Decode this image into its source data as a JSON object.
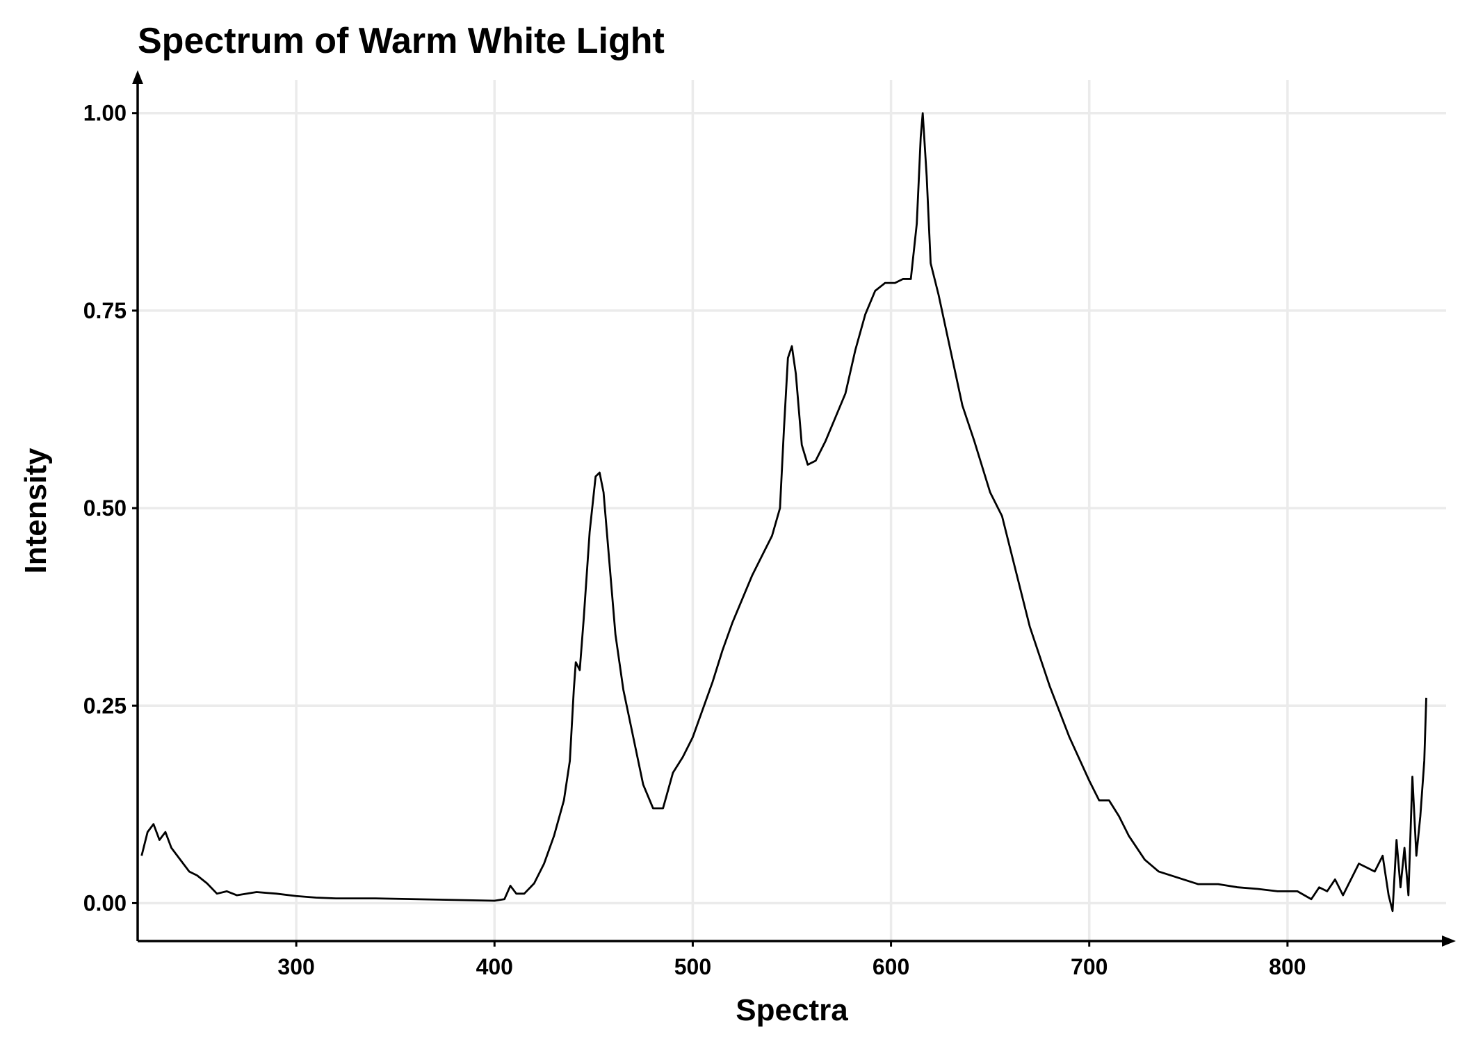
{
  "chart_data": {
    "type": "line",
    "title": "Spectrum of Warm White Light",
    "x_label": "Spectra",
    "y_label": "Intensity",
    "color": "#000000",
    "grid": true,
    "xlim": [
      220,
      880
    ],
    "ylim": [
      -0.048,
      1.042
    ],
    "xticks": [
      300,
      400,
      500,
      600,
      700,
      800
    ],
    "yticks": [
      {
        "value": 0,
        "label": "0.00"
      },
      {
        "value": 0.25,
        "label": "0.25"
      },
      {
        "value": 0.5,
        "label": "0.50"
      },
      {
        "value": 0.75,
        "label": "0.75"
      },
      {
        "value": 1,
        "label": "1.00"
      }
    ],
    "x": [
      222,
      225,
      228,
      231,
      234,
      237,
      240,
      243,
      246,
      250,
      255,
      260,
      265,
      270,
      280,
      290,
      300,
      310,
      320,
      340,
      360,
      380,
      400,
      405,
      408,
      411,
      415,
      420,
      425,
      430,
      435,
      438,
      440,
      441,
      443,
      445,
      448,
      451,
      453,
      455,
      458,
      461,
      465,
      470,
      475,
      480,
      485,
      490,
      495,
      500,
      505,
      510,
      515,
      520,
      525,
      530,
      535,
      540,
      544,
      546,
      548,
      550,
      552,
      555,
      558,
      562,
      567,
      572,
      577,
      582,
      587,
      592,
      597,
      602,
      606,
      610,
      613,
      615,
      616,
      618,
      620,
      624,
      630,
      636,
      642,
      650,
      656,
      662,
      670,
      680,
      690,
      700,
      705,
      710,
      715,
      720,
      728,
      735,
      745,
      755,
      765,
      775,
      785,
      795,
      805,
      812,
      816,
      820,
      824,
      828,
      832,
      836,
      840,
      844,
      848,
      851,
      853,
      855,
      857,
      859,
      861,
      863,
      865,
      867,
      869,
      870
    ],
    "values": [
      0.06,
      0.09,
      0.1,
      0.08,
      0.09,
      0.07,
      0.06,
      0.05,
      0.04,
      0.035,
      0.025,
      0.012,
      0.015,
      0.01,
      0.014,
      0.012,
      0.009,
      0.007,
      0.006,
      0.006,
      0.005,
      0.004,
      0.003,
      0.005,
      0.022,
      0.012,
      0.012,
      0.025,
      0.05,
      0.085,
      0.13,
      0.18,
      0.27,
      0.305,
      0.295,
      0.36,
      0.47,
      0.54,
      0.545,
      0.52,
      0.43,
      0.34,
      0.27,
      0.21,
      0.15,
      0.12,
      0.12,
      0.165,
      0.185,
      0.21,
      0.245,
      0.28,
      0.32,
      0.355,
      0.385,
      0.415,
      0.44,
      0.465,
      0.5,
      0.6,
      0.69,
      0.705,
      0.67,
      0.58,
      0.555,
      0.56,
      0.585,
      0.615,
      0.645,
      0.7,
      0.745,
      0.775,
      0.785,
      0.785,
      0.79,
      0.79,
      0.86,
      0.97,
      1.0,
      0.92,
      0.81,
      0.77,
      0.7,
      0.63,
      0.585,
      0.52,
      0.49,
      0.43,
      0.35,
      0.275,
      0.21,
      0.155,
      0.13,
      0.13,
      0.11,
      0.085,
      0.055,
      0.04,
      0.032,
      0.024,
      0.024,
      0.02,
      0.018,
      0.015,
      0.015,
      0.005,
      0.02,
      0.015,
      0.03,
      0.01,
      0.03,
      0.05,
      0.045,
      0.04,
      0.06,
      0.01,
      -0.01,
      0.08,
      0.02,
      0.07,
      0.01,
      0.16,
      0.06,
      0.11,
      0.18,
      0.26
    ]
  }
}
